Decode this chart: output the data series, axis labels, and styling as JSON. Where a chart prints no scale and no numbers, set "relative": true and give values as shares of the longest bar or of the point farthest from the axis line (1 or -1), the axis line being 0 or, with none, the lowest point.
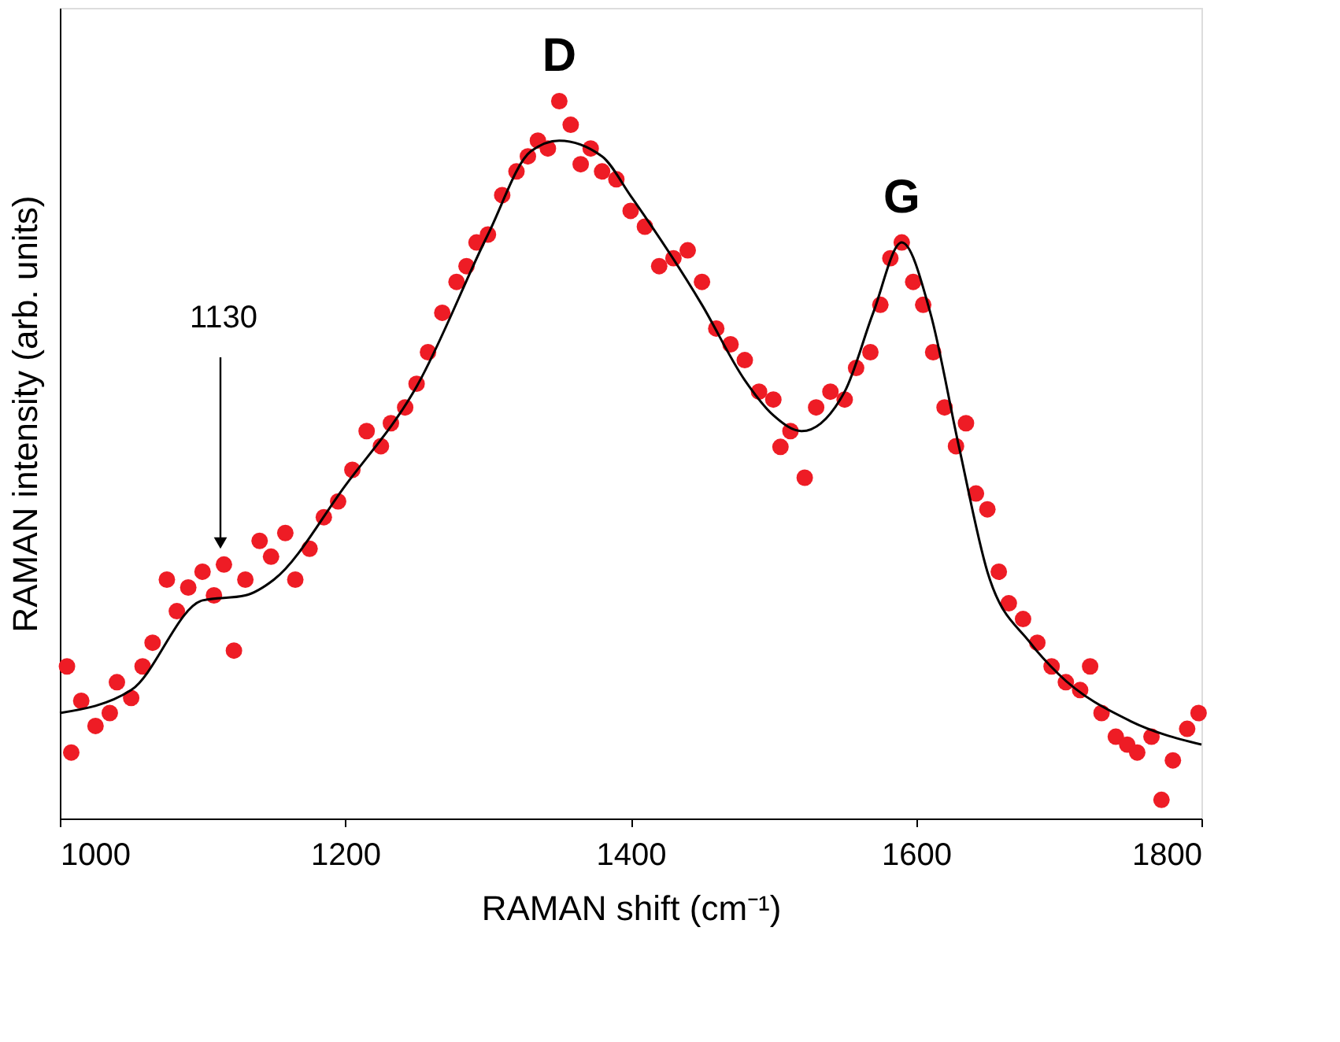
{
  "chart_data": {
    "type": "scatter",
    "xlabel": "RAMAN shift (cm⁻¹)",
    "ylabel": "RAMAN intensity (arb. units)",
    "relative": true,
    "xlim": [
      1000,
      1800
    ],
    "xticks": [
      1000,
      1200,
      1400,
      1600,
      1800
    ],
    "series": [
      {
        "color": "#ee1c25",
        "marker": "circle",
        "x": [
          1005,
          1008,
          1015,
          1025,
          1035,
          1040,
          1050,
          1058,
          1065,
          1075,
          1082,
          1090,
          1100,
          1108,
          1115,
          1122,
          1130,
          1140,
          1148,
          1158,
          1165,
          1175,
          1185,
          1195,
          1205,
          1215,
          1225,
          1232,
          1242,
          1250,
          1258,
          1268,
          1278,
          1285,
          1292,
          1300,
          1310,
          1320,
          1328,
          1335,
          1342,
          1350,
          1358,
          1365,
          1372,
          1380,
          1390,
          1400,
          1410,
          1420,
          1430,
          1440,
          1450,
          1460,
          1470,
          1480,
          1490,
          1500,
          1505,
          1512,
          1522,
          1530,
          1540,
          1550,
          1558,
          1568,
          1575,
          1582,
          1590,
          1598,
          1605,
          1612,
          1620,
          1628,
          1635,
          1642,
          1650,
          1658,
          1665,
          1675,
          1685,
          1695,
          1705,
          1715,
          1722,
          1730,
          1740,
          1748,
          1755,
          1765,
          1772,
          1780,
          1790,
          1798
        ],
        "values": [
          0.212,
          0.092,
          0.164,
          0.129,
          0.147,
          0.19,
          0.168,
          0.212,
          0.245,
          0.333,
          0.289,
          0.322,
          0.344,
          0.311,
          0.354,
          0.234,
          0.333,
          0.387,
          0.365,
          0.398,
          0.333,
          0.376,
          0.42,
          0.442,
          0.486,
          0.54,
          0.519,
          0.551,
          0.573,
          0.606,
          0.65,
          0.705,
          0.748,
          0.77,
          0.803,
          0.814,
          0.869,
          0.902,
          0.923,
          0.945,
          0.934,
          1.0,
          0.967,
          0.912,
          0.934,
          0.902,
          0.891,
          0.847,
          0.825,
          0.77,
          0.781,
          0.792,
          0.748,
          0.683,
          0.661,
          0.639,
          0.595,
          0.584,
          0.518,
          0.54,
          0.475,
          0.573,
          0.595,
          0.584,
          0.628,
          0.65,
          0.716,
          0.781,
          0.803,
          0.748,
          0.716,
          0.65,
          0.573,
          0.519,
          0.551,
          0.453,
          0.431,
          0.344,
          0.3,
          0.278,
          0.245,
          0.212,
          0.19,
          0.179,
          0.212,
          0.147,
          0.114,
          0.103,
          0.092,
          0.114,
          0.026,
          0.081,
          0.125,
          0.147
        ]
      },
      {
        "type": "line",
        "color": "#000000",
        "marker": "none",
        "line_style": "solid",
        "x": [
          1000,
          1050,
          1100,
          1130,
          1150,
          1200,
          1250,
          1300,
          1330,
          1350,
          1380,
          1400,
          1450,
          1480,
          1500,
          1520,
          1550,
          1570,
          1590,
          1610,
          1630,
          1650,
          1680,
          1700,
          1750,
          1800
        ],
        "values": [
          0.147,
          0.179,
          0.304,
          0.311,
          0.333,
          0.464,
          0.602,
          0.814,
          0.93,
          0.945,
          0.923,
          0.868,
          0.716,
          0.611,
          0.562,
          0.54,
          0.595,
          0.705,
          0.803,
          0.705,
          0.519,
          0.344,
          0.245,
          0.201,
          0.136,
          0.103
        ]
      }
    ],
    "annotations": [
      {
        "text": "D",
        "x": 1350,
        "y": 1.0
      },
      {
        "text": "G",
        "x": 1590,
        "y": 0.803
      },
      "1130"
    ]
  }
}
